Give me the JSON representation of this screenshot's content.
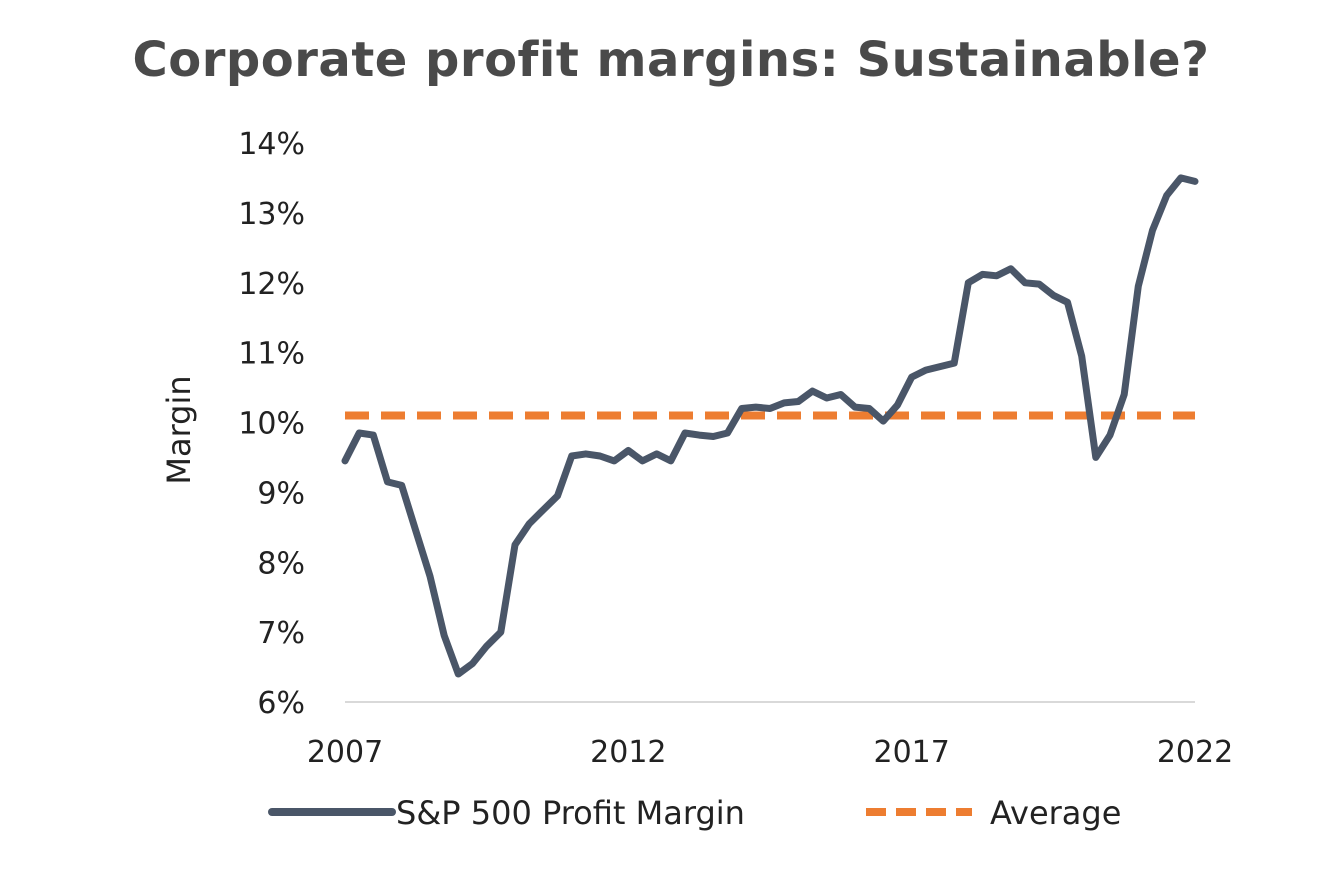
{
  "chart_data": {
    "type": "line",
    "title": "Corporate profit margins: Sustainable?",
    "xlabel": "",
    "ylabel": "Margin",
    "xlim": [
      2007,
      2022
    ],
    "ylim": [
      6,
      14
    ],
    "x_ticks": [
      2007,
      2012,
      2017,
      2022
    ],
    "x_tick_labels": [
      "2007",
      "2012",
      "2017",
      "2022"
    ],
    "y_ticks": [
      6,
      7,
      8,
      9,
      10,
      11,
      12,
      13,
      14
    ],
    "y_tick_labels": [
      "6%",
      "7%",
      "8%",
      "9%",
      "10%",
      "11%",
      "12%",
      "13%",
      "14%"
    ],
    "grid": false,
    "legend_position": "bottom",
    "series": [
      {
        "name": "S&P 500 Profit Margin",
        "color": "#4a5668",
        "style": "solid",
        "x": [
          2007.0,
          2007.25,
          2007.5,
          2007.75,
          2008.0,
          2008.25,
          2008.5,
          2008.75,
          2009.0,
          2009.25,
          2009.5,
          2009.75,
          2010.0,
          2010.25,
          2010.5,
          2010.75,
          2011.0,
          2011.25,
          2011.5,
          2011.75,
          2012.0,
          2012.25,
          2012.5,
          2012.75,
          2013.0,
          2013.25,
          2013.5,
          2013.75,
          2014.0,
          2014.25,
          2014.5,
          2014.75,
          2015.0,
          2015.25,
          2015.5,
          2015.75,
          2016.0,
          2016.25,
          2016.5,
          2016.75,
          2017.0,
          2017.25,
          2017.5,
          2017.75,
          2018.0,
          2018.25,
          2018.5,
          2018.75,
          2019.0,
          2019.25,
          2019.5,
          2019.75,
          2020.0,
          2020.25,
          2020.5,
          2020.75,
          2021.0,
          2021.25,
          2021.5,
          2021.75,
          2022.0
        ],
        "values": [
          9.45,
          9.85,
          9.82,
          9.15,
          9.1,
          8.45,
          7.8,
          6.95,
          6.4,
          6.55,
          6.8,
          7.0,
          8.25,
          8.55,
          8.75,
          8.95,
          9.52,
          9.55,
          9.52,
          9.45,
          9.6,
          9.45,
          9.55,
          9.45,
          9.85,
          9.82,
          9.8,
          9.85,
          10.2,
          10.22,
          10.2,
          10.28,
          10.3,
          10.45,
          10.35,
          10.4,
          10.22,
          10.2,
          10.02,
          10.25,
          10.65,
          10.75,
          10.8,
          10.85,
          12.0,
          12.12,
          12.1,
          12.2,
          12.0,
          11.98,
          11.82,
          11.72,
          10.95,
          9.5,
          9.82,
          10.4,
          11.95,
          12.75,
          13.25,
          13.5,
          13.45
        ]
      },
      {
        "name": "Average",
        "color": "#ed7d31",
        "style": "dashed",
        "x": [
          2007.0,
          2022.0
        ],
        "values": [
          10.1,
          10.1
        ]
      }
    ]
  }
}
